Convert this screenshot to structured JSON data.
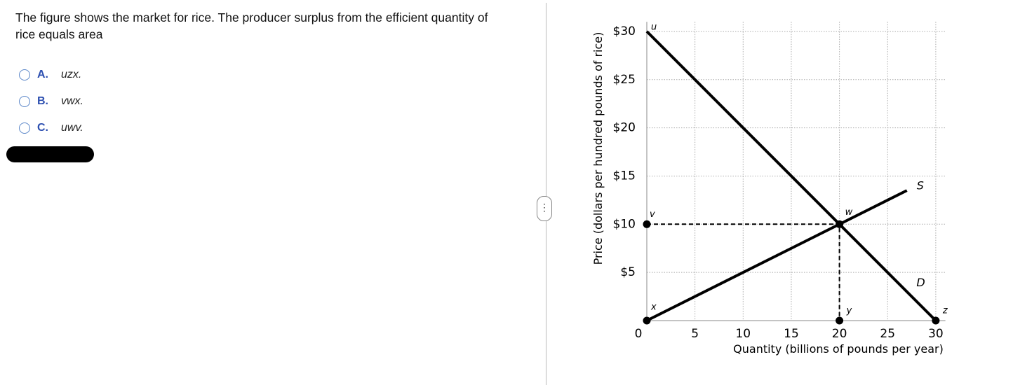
{
  "question": "The figure shows the market for rice. The producer surplus from the efficient quantity of rice equals area",
  "options": [
    {
      "letter": "A.",
      "text": "uzx."
    },
    {
      "letter": "B.",
      "text": "vwx."
    },
    {
      "letter": "C.",
      "text": "uwv."
    }
  ],
  "chart_data": {
    "type": "line",
    "xlabel": "Quantity (billions of pounds per year)",
    "ylabel": "Price (dollars per hundred pounds of rice)",
    "xlim": [
      0,
      31
    ],
    "ylim": [
      0,
      31
    ],
    "xticks": [
      0,
      5,
      10,
      15,
      20,
      25,
      30
    ],
    "yticks": [
      {
        "value": 5,
        "label": "$5"
      },
      {
        "value": 10,
        "label": "$10"
      },
      {
        "value": 15,
        "label": "$15"
      },
      {
        "value": 20,
        "label": "$20"
      },
      {
        "value": 25,
        "label": "$25"
      },
      {
        "value": 30,
        "label": "$30"
      }
    ],
    "grid": true,
    "series": [
      {
        "name": "D",
        "color": "#000000",
        "x": [
          0,
          30
        ],
        "values": [
          30,
          0
        ]
      },
      {
        "name": "S",
        "color": "#000000",
        "x": [
          0,
          27
        ],
        "values": [
          0,
          13.5
        ]
      }
    ],
    "guides": [
      {
        "style": "dashed",
        "color": "#000000",
        "x": [
          0,
          20,
          20
        ],
        "values": [
          10,
          10,
          0
        ]
      }
    ],
    "points": [
      {
        "label": "u",
        "x": 0,
        "y": 30,
        "dot": false
      },
      {
        "label": "v",
        "x": 0,
        "y": 10,
        "dot": true
      },
      {
        "label": "w",
        "x": 20,
        "y": 10,
        "dot": true
      },
      {
        "label": "x",
        "x": 0,
        "y": 0,
        "dot": true
      },
      {
        "label": "y",
        "x": 20,
        "y": 0,
        "dot": true
      },
      {
        "label": "z",
        "x": 30,
        "y": 0,
        "dot": true
      }
    ]
  }
}
